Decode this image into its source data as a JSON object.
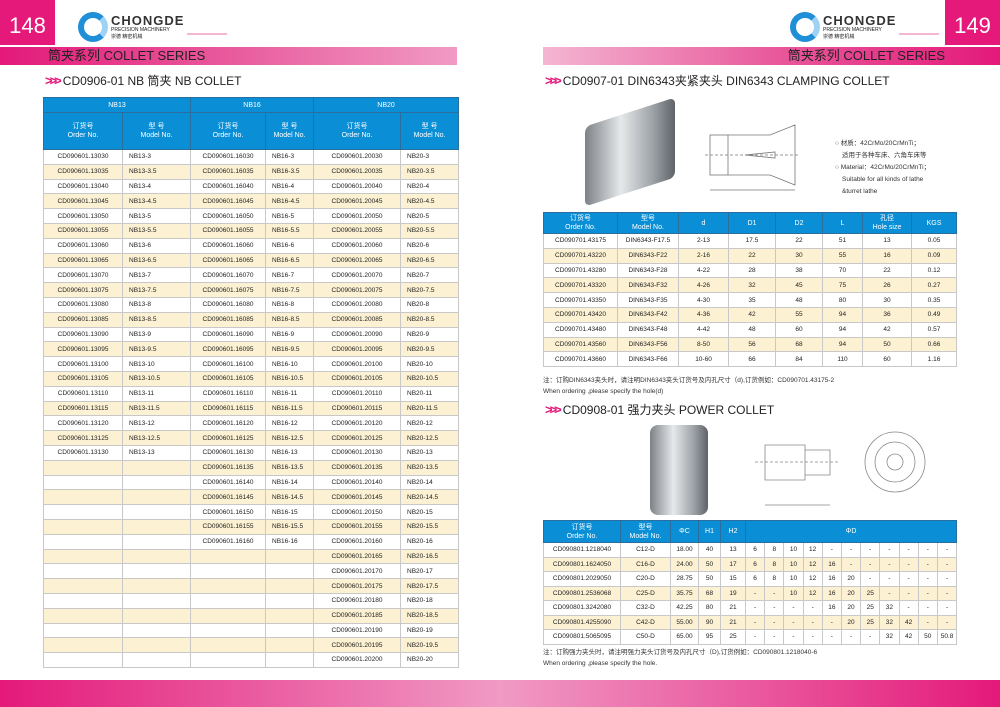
{
  "left": {
    "page_number": "148",
    "band": "筒夹系列  COLLET SERIES",
    "title": "CD0906-01 NB  筒夹 NB COLLET",
    "groups": [
      "NB13",
      "NB16",
      "NB20"
    ],
    "col_order": [
      "订货号",
      "Order No."
    ],
    "col_model": [
      "型 号",
      "Model  No."
    ],
    "rows": [
      [
        "CD090601.13030",
        "NB13-3",
        "CD090601.16030",
        "NB16-3",
        "CD090601.20030",
        "NB20-3"
      ],
      [
        "CD090601.13035",
        "NB13-3.5",
        "CD090601.16035",
        "NB16-3.5",
        "CD090601.20035",
        "NB20-3.5"
      ],
      [
        "CD090601.13040",
        "NB13-4",
        "CD090601.16040",
        "NB16-4",
        "CD090601.20040",
        "NB20-4"
      ],
      [
        "CD090601.13045",
        "NB13-4.5",
        "CD090601.16045",
        "NB16-4.5",
        "CD090601.20045",
        "NB20-4.5"
      ],
      [
        "CD090601.13050",
        "NB13-5",
        "CD090601.16050",
        "NB16-5",
        "CD090601.20050",
        "NB20-5"
      ],
      [
        "CD090601.13055",
        "NB13-5.5",
        "CD090601.16055",
        "NB16-5.5",
        "CD090601.20055",
        "NB20-5.5"
      ],
      [
        "CD090601.13060",
        "NB13-6",
        "CD090601.16060",
        "NB16-6",
        "CD090601.20060",
        "NB20-6"
      ],
      [
        "CD090601.13065",
        "NB13-6.5",
        "CD090601.16065",
        "NB16-6.5",
        "CD090601.20065",
        "NB20-6.5"
      ],
      [
        "CD090601.13070",
        "NB13-7",
        "CD090601.16070",
        "NB16-7",
        "CD090601.20070",
        "NB20-7"
      ],
      [
        "CD090601.13075",
        "NB13-7.5",
        "CD090601.16075",
        "NB16-7.5",
        "CD090601.20075",
        "NB20-7.5"
      ],
      [
        "CD090601.13080",
        "NB13-8",
        "CD090601.16080",
        "NB16-8",
        "CD090601.20080",
        "NB20-8"
      ],
      [
        "CD090601.13085",
        "NB13-8.5",
        "CD090601.16085",
        "NB16-8.5",
        "CD090601.20085",
        "NB20-8.5"
      ],
      [
        "CD090601.13090",
        "NB13-9",
        "CD090601.16090",
        "NB16-9",
        "CD090601.20090",
        "NB20-9"
      ],
      [
        "CD090601.13095",
        "NB13-9.5",
        "CD090601.16095",
        "NB16-9.5",
        "CD090601.20095",
        "NB20-9.5"
      ],
      [
        "CD090601.13100",
        "NB13-10",
        "CD090601.16100",
        "NB16-10",
        "CD090601.20100",
        "NB20-10"
      ],
      [
        "CD090601.13105",
        "NB13-10.5",
        "CD090601.16105",
        "NB16-10.5",
        "CD090601.20105",
        "NB20-10.5"
      ],
      [
        "CD090601.13110",
        "NB13-11",
        "CD090601.16110",
        "NB16-11",
        "CD090601.20110",
        "NB20-11"
      ],
      [
        "CD090601.13115",
        "NB13-11.5",
        "CD090601.16115",
        "NB16-11.5",
        "CD090601.20115",
        "NB20-11.5"
      ],
      [
        "CD090601.13120",
        "NB13-12",
        "CD090601.16120",
        "NB16-12",
        "CD090601.20120",
        "NB20-12"
      ],
      [
        "CD090601.13125",
        "NB13-12.5",
        "CD090601.16125",
        "NB16-12.5",
        "CD090601.20125",
        "NB20-12.5"
      ],
      [
        "CD090601.13130",
        "NB13-13",
        "CD090601.16130",
        "NB16-13",
        "CD090601.20130",
        "NB20-13"
      ],
      [
        "",
        "",
        "CD090601.16135",
        "NB16-13.5",
        "CD090601.20135",
        "NB20-13.5"
      ],
      [
        "",
        "",
        "CD090601.16140",
        "NB16-14",
        "CD090601.20140",
        "NB20-14"
      ],
      [
        "",
        "",
        "CD090601.16145",
        "NB16-14.5",
        "CD090601.20145",
        "NB20-14.5"
      ],
      [
        "",
        "",
        "CD090601.16150",
        "NB16-15",
        "CD090601.20150",
        "NB20-15"
      ],
      [
        "",
        "",
        "CD090601.16155",
        "NB16-15.5",
        "CD090601.20155",
        "NB20-15.5"
      ],
      [
        "",
        "",
        "CD090601.16160",
        "NB16-16",
        "CD090601.20160",
        "NB20-16"
      ],
      [
        "",
        "",
        "",
        "",
        "CD090601.20165",
        "NB20-16.5"
      ],
      [
        "",
        "",
        "",
        "",
        "CD090601.20170",
        "NB20-17"
      ],
      [
        "",
        "",
        "",
        "",
        "CD090601.20175",
        "NB20-17.5"
      ],
      [
        "",
        "",
        "",
        "",
        "CD090601.20180",
        "NB20-18"
      ],
      [
        "",
        "",
        "",
        "",
        "CD090601.20185",
        "NB20-18.5"
      ],
      [
        "",
        "",
        "",
        "",
        "CD090601.20190",
        "NB20-19"
      ],
      [
        "",
        "",
        "",
        "",
        "CD090601.20195",
        "NB20-19.5"
      ],
      [
        "",
        "",
        "",
        "",
        "CD090601.20200",
        "NB20-20"
      ]
    ]
  },
  "right": {
    "page_number": "149",
    "band": "筒夹系列  COLLET SERIES",
    "din": {
      "title": "CD0907-01 DIN6343夹紧夹头 DIN6343  CLAMPING COLLET",
      "specs": [
        "○ 材质：42CrMo/20CrMnTi；",
        "适用于各种车床、六角车床等",
        "○ Material：42CrMo/20CrMnTi；",
        "Suitable for all kinds of lathe",
        "&turret lathe"
      ],
      "headers": [
        [
          "订货号",
          "Order No."
        ],
        [
          "型号",
          "Model No."
        ],
        [
          "d"
        ],
        [
          "D1"
        ],
        [
          "D2"
        ],
        [
          "L"
        ],
        [
          "孔径",
          "Hole size"
        ],
        [
          "KGS"
        ]
      ],
      "rows": [
        [
          "CD090701.43175",
          "DIN6343-F17.5",
          "2-13",
          "17.5",
          "22",
          "51",
          "13",
          "0.05"
        ],
        [
          "CD090701.43220",
          "DIN6343-F22",
          "2-16",
          "22",
          "30",
          "55",
          "16",
          "0.09"
        ],
        [
          "CD090701.43280",
          "DIN6343-F28",
          "4-22",
          "28",
          "38",
          "70",
          "22",
          "0.12"
        ],
        [
          "CD090701.43320",
          "DIN6343-F32",
          "4-26",
          "32",
          "45",
          "75",
          "26",
          "0.27"
        ],
        [
          "CD090701.43350",
          "DIN6343-F35",
          "4-30",
          "35",
          "48",
          "80",
          "30",
          "0.35"
        ],
        [
          "CD090701.43420",
          "DIN6343-F42",
          "4-36",
          "42",
          "55",
          "94",
          "36",
          "0.49"
        ],
        [
          "CD090701.43480",
          "DIN6343-F48",
          "4-42",
          "48",
          "60",
          "94",
          "42",
          "0.57"
        ],
        [
          "CD090701.43560",
          "DIN6343-F56",
          "8-50",
          "56",
          "68",
          "94",
          "50",
          "0.66"
        ],
        [
          "CD090701.43660",
          "DIN6343-F66",
          "10-60",
          "66",
          "84",
          "110",
          "60",
          "1.16"
        ]
      ],
      "note": [
        "注：订购DIN6343夹头时，请注明DIN6343夹头订货号及内孔尺寸（d),订货例如：CD090701.43175-2",
        "When ordering ,please specify the hole(d)"
      ]
    },
    "power": {
      "title": "CD0908-01 强力夹头  POWER COLLET",
      "headers": [
        [
          "订货号",
          "Order No."
        ],
        [
          "型号",
          "Model No."
        ],
        [
          "ΦC"
        ],
        [
          "H1"
        ],
        [
          "H2"
        ],
        [
          "ΦD"
        ]
      ],
      "rows": [
        [
          "CD090801.1218040",
          "C12-D",
          "18.00",
          "40",
          "13",
          "6",
          "8",
          "10",
          "12",
          "-",
          "-",
          "-",
          "-",
          "-",
          "-",
          "-"
        ],
        [
          "CD090801.1624050",
          "C16-D",
          "24.00",
          "50",
          "17",
          "6",
          "8",
          "10",
          "12",
          "16",
          "-",
          "-",
          "-",
          "-",
          "-",
          "-"
        ],
        [
          "CD090801.2029050",
          "C20-D",
          "28.75",
          "50",
          "15",
          "6",
          "8",
          "10",
          "12",
          "16",
          "20",
          "-",
          "-",
          "-",
          "-",
          "-"
        ],
        [
          "CD090801.2536068",
          "C25-D",
          "35.75",
          "68",
          "19",
          "-",
          "-",
          "10",
          "12",
          "16",
          "20",
          "25",
          "-",
          "-",
          "-",
          "-"
        ],
        [
          "CD090801.3242080",
          "C32-D",
          "42.25",
          "80",
          "21",
          "-",
          "-",
          "-",
          "-",
          "16",
          "20",
          "25",
          "32",
          "-",
          "-",
          "-"
        ],
        [
          "CD090801.4255090",
          "C42-D",
          "55.00",
          "90",
          "21",
          "-",
          "-",
          "-",
          "-",
          "-",
          "20",
          "25",
          "32",
          "42",
          "-",
          "-"
        ],
        [
          "CD090801.5065095",
          "C50-D",
          "65.00",
          "95",
          "25",
          "-",
          "-",
          "-",
          "-",
          "-",
          "-",
          "-",
          "32",
          "42",
          "50",
          "50.8"
        ]
      ],
      "note": [
        "注：订购强力夹头时，请注明强力夹头订货号及内孔尺寸（D),订货例如：CD090801.1218040-6",
        "When ordering ,please specify the hole."
      ]
    }
  },
  "logo": {
    "brand": "CHONGDE",
    "sub": "PRECISION MACHINERY",
    "cn": "崇德 精密机械"
  },
  "colors": {
    "accent": "#e4197a",
    "header_blue": "#0a8fd6",
    "alt_row": "#fcf1d2"
  }
}
